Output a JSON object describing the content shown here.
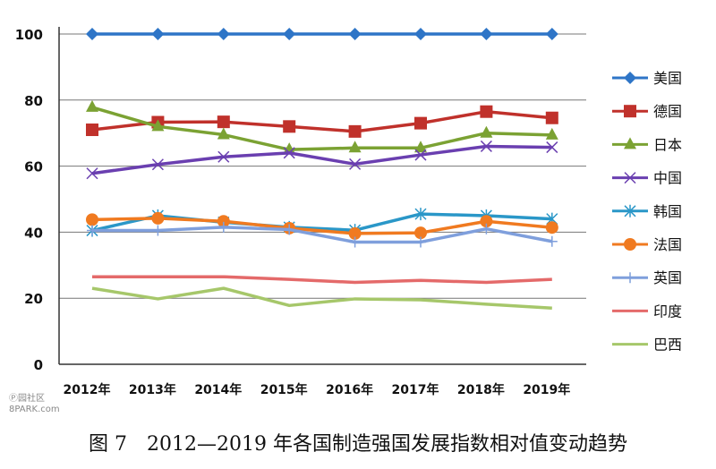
{
  "chart_data": {
    "type": "line",
    "title": "",
    "categories": [
      "2012年",
      "2013年",
      "2014年",
      "2015年",
      "2016年",
      "2017年",
      "2018年",
      "2019年"
    ],
    "ylim": [
      0,
      100
    ],
    "yticks": [
      0,
      20,
      40,
      60,
      80,
      100
    ],
    "grid": true,
    "legend_position": "right",
    "series": [
      {
        "name": "美国",
        "color": "#2e75c7",
        "marker": "diamond",
        "values": [
          100,
          100,
          100,
          100,
          100,
          100,
          100,
          100
        ]
      },
      {
        "name": "德国",
        "color": "#c0312b",
        "marker": "square",
        "values": [
          71,
          73.3,
          73.4,
          72,
          70.5,
          73,
          76.5,
          74.6
        ]
      },
      {
        "name": "日本",
        "color": "#7ba233",
        "marker": "triangle",
        "values": [
          77.8,
          72,
          69.5,
          65,
          65.5,
          65.5,
          70,
          69.4
        ]
      },
      {
        "name": "中国",
        "color": "#6a3fb0",
        "marker": "x",
        "values": [
          57.8,
          60.5,
          62.8,
          64,
          60.6,
          63.4,
          66,
          65.7
        ]
      },
      {
        "name": "韩国",
        "color": "#2a97c8",
        "marker": "star",
        "values": [
          40.5,
          45,
          43,
          41.5,
          40.6,
          45.5,
          45,
          44
        ]
      },
      {
        "name": "法国",
        "color": "#f07a20",
        "marker": "circle",
        "values": [
          43.8,
          44.2,
          43.3,
          41.2,
          39.6,
          39.8,
          43.3,
          41.4
        ]
      },
      {
        "name": "英国",
        "color": "#7f9fdc",
        "marker": "plus",
        "values": [
          40.5,
          40.5,
          41.5,
          40.8,
          37,
          37,
          41,
          37.2
        ]
      },
      {
        "name": "印度",
        "color": "#e46a6a",
        "marker": "none",
        "values": [
          26.5,
          26.5,
          26.5,
          25.7,
          24.8,
          25.4,
          24.8,
          25.7
        ]
      },
      {
        "name": "巴西",
        "color": "#a6c76a",
        "marker": "none",
        "values": [
          23,
          19.8,
          23,
          17.8,
          19.8,
          19.5,
          18.2,
          17
        ]
      }
    ]
  },
  "caption": "图 7　2012—2019 年各国制造强国发展指数相对值变动趋势",
  "watermark": [
    "Ⓟ园社区",
    "8PARK.com"
  ]
}
